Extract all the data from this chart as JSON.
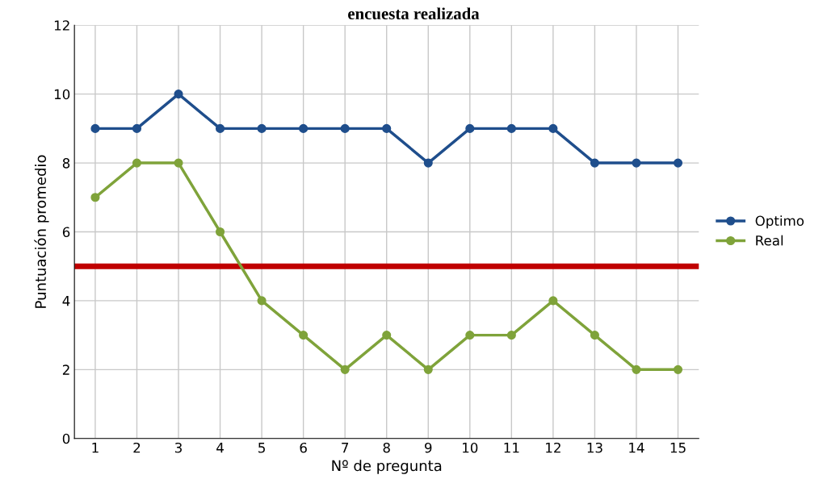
{
  "chart_data": {
    "type": "line",
    "title": "encuesta realizada",
    "xlabel": "Nº de pregunta",
    "ylabel": "Puntuación promedio",
    "categories": [
      "1",
      "2",
      "3",
      "4",
      "5",
      "6",
      "7",
      "8",
      "9",
      "10",
      "11",
      "12",
      "13",
      "14",
      "15"
    ],
    "series": [
      {
        "name": "Optimo",
        "color": "#1f4e8c",
        "values": [
          9,
          9,
          10,
          9,
          9,
          9,
          9,
          9,
          8,
          9,
          9,
          9,
          8,
          8,
          8
        ]
      },
      {
        "name": "Real",
        "color": "#7fa33a",
        "values": [
          7,
          8,
          8,
          6,
          4,
          3,
          2,
          3,
          2,
          3,
          3,
          4,
          3,
          2,
          2
        ]
      }
    ],
    "ylim": [
      0,
      12
    ],
    "yticks": [
      0,
      2,
      4,
      6,
      8,
      10,
      12
    ],
    "grid": true,
    "legend": "right",
    "marker": "circle",
    "line_style": "solid",
    "ref_lines": [
      {
        "axis": "y",
        "value": 5,
        "color": "#c00000"
      }
    ]
  }
}
